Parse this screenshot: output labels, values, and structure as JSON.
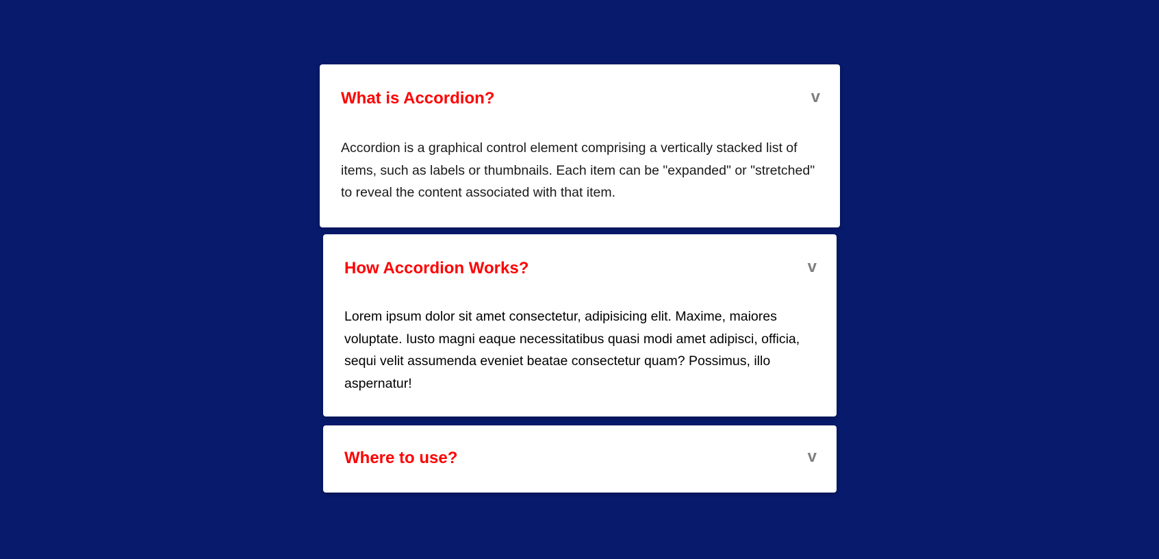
{
  "colors": {
    "background": "#071a6b",
    "panel": "#ffffff",
    "title": "#ff0000",
    "chevron": "#808080",
    "text": "#1a1a1a"
  },
  "accordion": {
    "chevron_glyph": "v",
    "items": [
      {
        "title": "What is Accordion?",
        "expanded": true,
        "content": "Accordion is a graphical control element comprising a vertically stacked list of items, such as labels or thumbnails. Each item can be \"expanded\" or \"stretched\" to reveal the content associated with that item."
      },
      {
        "title": "How Accordion Works?",
        "expanded": true,
        "content": "Lorem ipsum dolor sit amet consectetur, adipisicing elit. Maxime, maiores voluptate. Iusto magni eaque necessitatibus quasi modi amet adipisci, officia, sequi velit assumenda eveniet beatae consectetur quam? Possimus, illo aspernatur!"
      },
      {
        "title": "Where to use?",
        "expanded": false,
        "content": ""
      }
    ]
  }
}
